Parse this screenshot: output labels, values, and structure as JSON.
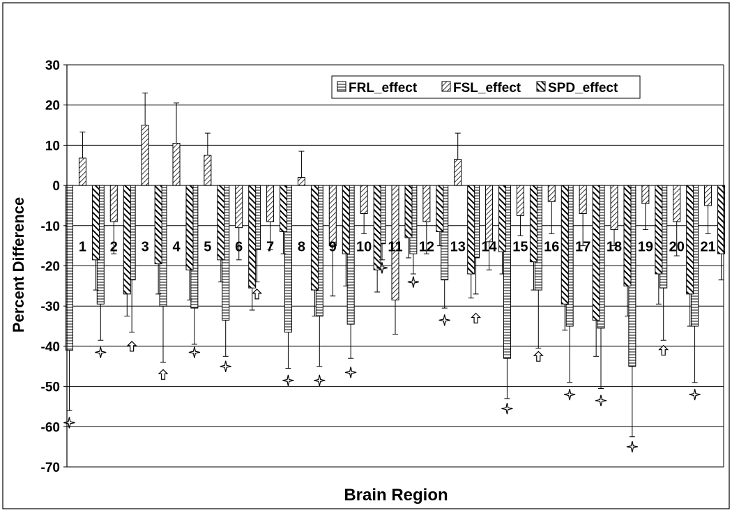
{
  "chart_data": {
    "type": "bar",
    "title": "",
    "xlabel": "Brain Region",
    "ylabel": "Percent Difference",
    "ylim": [
      -70,
      30
    ],
    "yticks": [
      30,
      20,
      10,
      0,
      -10,
      -20,
      -30,
      -40,
      -50,
      -60,
      -70
    ],
    "grid": true,
    "legend_position": "top-right",
    "categories": [
      "1",
      "2",
      "3",
      "4",
      "5",
      "6",
      "7",
      "8",
      "9",
      "10",
      "11",
      "12",
      "13",
      "14",
      "15",
      "16",
      "17",
      "18",
      "19",
      "20",
      "21"
    ],
    "series": [
      {
        "name": "FRL_effect",
        "pattern": "horizontal",
        "values": [
          -41,
          -29.5,
          -23.5,
          -30,
          -30.5,
          -33.5,
          -16,
          -36.5,
          -32.5,
          -34.5,
          -14.5,
          -17,
          -23.5,
          -18,
          -43,
          -26,
          -35,
          -35.5,
          -45,
          -25.5,
          -35
        ],
        "errors": [
          15,
          9,
          13,
          14,
          9,
          9,
          8,
          9,
          12.5,
          8.5,
          4,
          5,
          7,
          9,
          10,
          14.5,
          14,
          15,
          17.5,
          13,
          14
        ]
      },
      {
        "name": "FSL_effect",
        "pattern": "diagonal",
        "values": [
          6.8,
          -9,
          15,
          10.5,
          7.5,
          -10.5,
          -9,
          2,
          -15,
          -7,
          -28.5,
          -9,
          6.5,
          -14,
          -7.5,
          -4,
          -7,
          -11,
          -4.5,
          -9,
          -5
        ],
        "errors": [
          6.5,
          8,
          8,
          10,
          5.5,
          8,
          7,
          6.5,
          12.5,
          5,
          8.5,
          8,
          6.5,
          7,
          5,
          8,
          8,
          4,
          6.5,
          8.5,
          7
        ]
      },
      {
        "name": "SPD_effect",
        "pattern": "diagonal-bold",
        "values": [
          -18.5,
          -27,
          -19.5,
          -21,
          -18.5,
          -25.5,
          -11.5,
          -26,
          -17,
          -21,
          -13,
          -11.5,
          -22,
          -16.5,
          -19,
          -29.5,
          -33.5,
          -25,
          -22,
          -27,
          -17
        ],
        "errors": [
          7.5,
          5.5,
          7.5,
          7.5,
          5.5,
          5.5,
          5.5,
          6.5,
          8,
          5.5,
          5,
          3.5,
          6,
          5.5,
          7,
          6.5,
          9,
          7.5,
          7.5,
          8,
          6.5
        ]
      }
    ],
    "markers": [
      {
        "region": "1",
        "type": "star",
        "y": -59
      },
      {
        "region": "2",
        "type": "star",
        "y": -41.5
      },
      {
        "region": "3",
        "type": "arrow",
        "y": -40
      },
      {
        "region": "4",
        "type": "arrow",
        "y": -47
      },
      {
        "region": "5",
        "type": "star",
        "y": -41.5
      },
      {
        "region": "6",
        "type": "star",
        "y": -45
      },
      {
        "region": "7",
        "type": "arrow",
        "y": -27
      },
      {
        "region": "8",
        "type": "star",
        "y": -48.5
      },
      {
        "region": "9",
        "type": "star",
        "y": -48.5
      },
      {
        "region": "10",
        "type": "star",
        "y": -46.5
      },
      {
        "region": "11",
        "type": "star",
        "y": -20.5
      },
      {
        "region": "12",
        "type": "star",
        "y": -24
      },
      {
        "region": "13",
        "type": "star",
        "y": -33.5
      },
      {
        "region": "14",
        "type": "arrow",
        "y": -33
      },
      {
        "region": "15",
        "type": "star",
        "y": -55.5
      },
      {
        "region": "16",
        "type": "arrow",
        "y": -42.5
      },
      {
        "region": "17",
        "type": "star",
        "y": -52
      },
      {
        "region": "18",
        "type": "star",
        "y": -53.5
      },
      {
        "region": "19",
        "type": "star",
        "y": -65
      },
      {
        "region": "20",
        "type": "arrow",
        "y": -41
      },
      {
        "region": "21",
        "type": "star",
        "y": -52
      }
    ],
    "category_label_y": -15,
    "colors": {
      "frame": "#000000",
      "bar_fill": "#ffffff",
      "grid": "#000000"
    }
  }
}
